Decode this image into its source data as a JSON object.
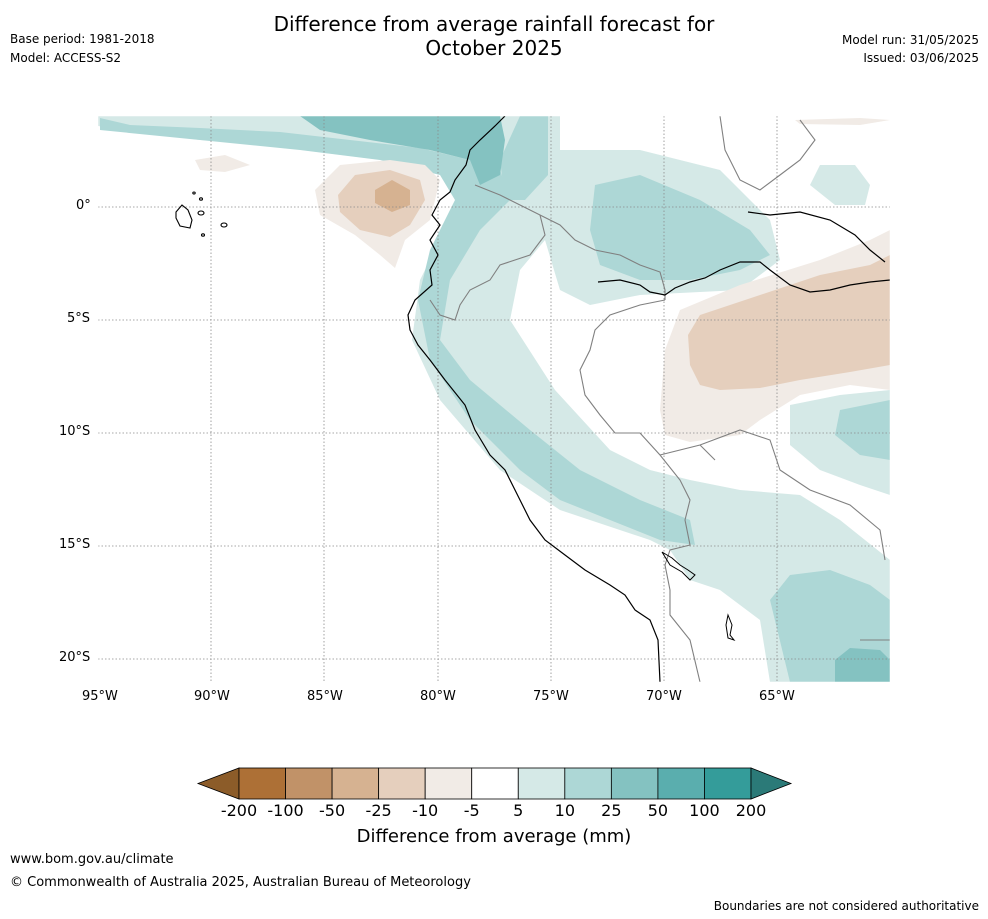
{
  "header": {
    "title_line1": "Difference from average rainfall forecast for",
    "title_line2": "October 2025",
    "base_period": "Base period: 1981-2018",
    "model": "Model: ACCESS-S2",
    "model_run": "Model run: 31/05/2025",
    "issued": "Issued: 03/06/2025"
  },
  "map": {
    "lat_ticks": [
      "0°",
      "5°S",
      "10°S",
      "15°S",
      "20°S"
    ],
    "lon_ticks": [
      "95°W",
      "90°W",
      "85°W",
      "80°W",
      "75°W",
      "70°W",
      "65°W"
    ]
  },
  "colorbar": {
    "title": "Difference from average (mm)",
    "labels": [
      "-200",
      "-100",
      "-50",
      "-25",
      "-10",
      "-5",
      "5",
      "10",
      "25",
      "50",
      "100",
      "200"
    ],
    "colors": [
      "#8c5c29",
      "#ad7036",
      "#c19268",
      "#d6b291",
      "#e5cfbd",
      "#f1ebe6",
      "#ffffff",
      "#d5e9e7",
      "#add7d6",
      "#84c2c1",
      "#5aaeae",
      "#349c9a",
      "#2b7a78"
    ]
  },
  "footer": {
    "website": "www.bom.gov.au/climate",
    "copyright": "© Commonwealth of Australia 2025, Australian Bureau of Meteorology",
    "disclaimer": "Boundaries are not considered authoritative"
  }
}
